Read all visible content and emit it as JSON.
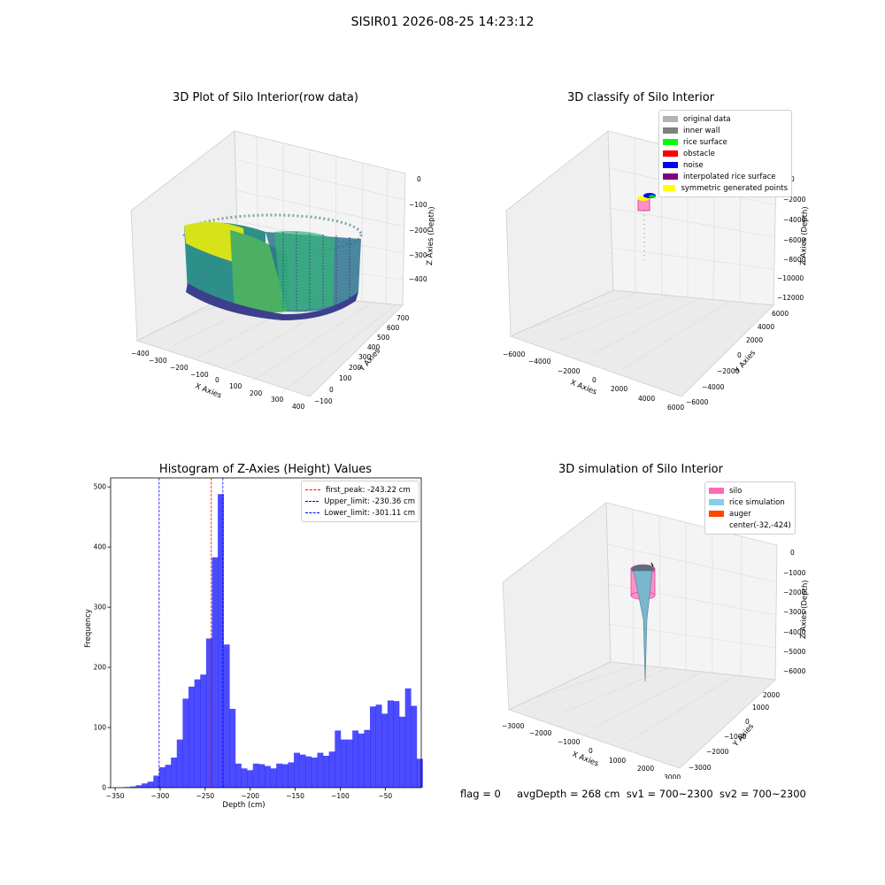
{
  "figure": {
    "suptitle": "SISIR01 2026-08-25 14:23:12",
    "status": {
      "flag": "flag = 0",
      "avg_depth": "avgDepth = 268 cm",
      "sv1": "sv1 = 700~2300",
      "sv2": "sv2 = 700~2300"
    }
  },
  "panels": {
    "p1": {
      "title": "3D Plot of Silo Interior(row data)",
      "xlabel": "X Axies",
      "ylabel": "Y Axies",
      "zlabel": "Z Axies (Depth)",
      "xticks": [
        "−400",
        "−300",
        "−200",
        "−100",
        "0",
        "100",
        "200",
        "300",
        "400"
      ],
      "yticks": [
        "−100",
        "0",
        "100",
        "200",
        "300",
        "400",
        "500",
        "600",
        "700"
      ],
      "zticks": [
        "0",
        "−100",
        "−200",
        "−300",
        "−400"
      ]
    },
    "p2": {
      "title": "3D classify of Silo Interior",
      "xlabel": "X Axies",
      "ylabel": "Y Axies",
      "zlabel": "Z Axies (Depth)",
      "xticks": [
        "−6000",
        "−4000",
        "−2000",
        "0",
        "2000",
        "4000",
        "6000"
      ],
      "yticks": [
        "−6000",
        "−4000",
        "−2000",
        "0",
        "2000",
        "4000",
        "6000"
      ],
      "zticks": [
        "0",
        "−2000",
        "−4000",
        "−6000",
        "−8000",
        "−10000",
        "−12000"
      ],
      "legend": [
        {
          "label": "original data",
          "color": "#b3b3b3"
        },
        {
          "label": "inner wall",
          "color": "#808080"
        },
        {
          "label": "rice surface",
          "color": "#00ff00"
        },
        {
          "label": "obstacle",
          "color": "#ff0000"
        },
        {
          "label": "noise",
          "color": "#0000ff"
        },
        {
          "label": "interpolated rice surface",
          "color": "#800080"
        },
        {
          "label": "symmetric generated points",
          "color": "#ffff00"
        }
      ]
    },
    "p4": {
      "title": "3D simulation of Silo Interior",
      "xlabel": "X Axies",
      "ylabel": "Y Axies",
      "zlabel": "Z Axies (Depth)",
      "xticks": [
        "−3000",
        "−2000",
        "−1000",
        "0",
        "1000",
        "2000",
        "3000"
      ],
      "yticks": [
        "−3000",
        "−2000",
        "−1000",
        "0",
        "1000",
        "2000"
      ],
      "zticks": [
        "0",
        "−1000",
        "−2000",
        "−3000",
        "−4000",
        "−5000",
        "−6000"
      ],
      "legend": [
        {
          "label": "silo",
          "color": "#ff69b4"
        },
        {
          "label": "rice simulation",
          "color": "#87ceeb"
        },
        {
          "label": "auger",
          "color": "#ff4500"
        },
        {
          "label": "center(-32,-424)",
          "color": ""
        }
      ]
    }
  },
  "chart_data": {
    "type": "bar",
    "title": "Histogram of Z-Axies (Height) Values",
    "xlabel": "Depth (cm)",
    "ylabel": "Frequency",
    "xlim": [
      -355,
      -10
    ],
    "ylim": [
      0,
      515
    ],
    "xticks": [
      -350,
      -300,
      -250,
      -200,
      -150,
      -100,
      -50
    ],
    "yticks": [
      0,
      100,
      200,
      300,
      400,
      500
    ],
    "bar_color": "#0000ff",
    "bin_edges_start": -340,
    "bin_width": 6.5,
    "values": [
      1,
      2,
      4,
      7,
      10,
      20,
      34,
      38,
      50,
      80,
      148,
      168,
      180,
      188,
      248,
      383,
      488,
      238,
      131,
      40,
      32,
      29,
      40,
      39,
      36,
      32,
      40,
      39,
      42,
      58,
      55,
      52,
      50,
      58,
      53,
      60,
      95,
      80,
      80,
      95,
      90,
      96,
      135,
      138,
      123,
      145,
      144,
      118,
      165,
      136,
      48
    ],
    "vlines": [
      {
        "label": "first_peak: -243.22 cm",
        "x": -243.22,
        "color": "#ff0000"
      },
      {
        "label": "Upper_limit: -230.36 cm",
        "x": -230.36,
        "color": "#0000ff"
      },
      {
        "label": "Lower_limit: -301.11 cm",
        "x": -301.11,
        "color": "#0000ff"
      }
    ],
    "legend_position": "top-right"
  }
}
